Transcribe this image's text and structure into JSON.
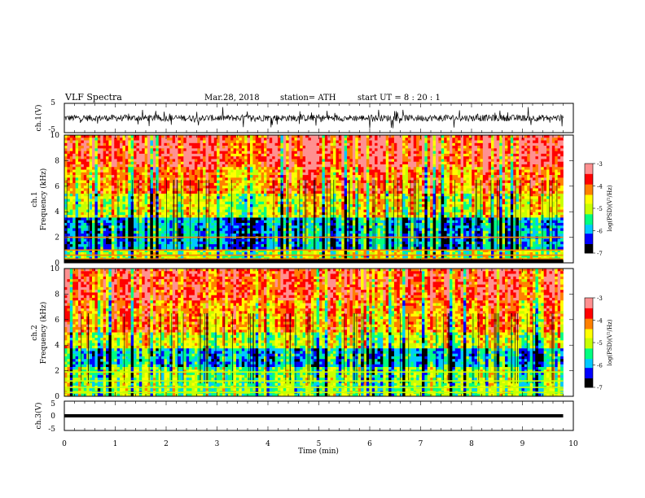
{
  "header": {
    "title": "VLF  Spectra",
    "date": "Mar.28, 2018",
    "station": "station= ATH",
    "start": "start  UT  =    8  : 20 : 1"
  },
  "chart_data": [
    {
      "type": "line",
      "panel": "ch1-waveform",
      "ylabel": "ch.1(V)",
      "ylim": [
        -5,
        5
      ],
      "yticks": [
        "5",
        "-5"
      ],
      "xlim": [
        0,
        10
      ]
    },
    {
      "type": "heatmap",
      "panel": "ch1-spectrogram",
      "ylabel_line1": "ch.1",
      "ylabel_line2": "Frequency  (kHz)",
      "ylim": [
        0,
        10
      ],
      "yticks": [
        "0",
        "2",
        "4",
        "6",
        "8",
        "10"
      ],
      "xlim": [
        0,
        10
      ],
      "data_end_min": 9.8,
      "colorbar": {
        "label": "log(PSD)(V²/Hz)",
        "range": [
          -7,
          -3
        ],
        "ticks": [
          "-3",
          "-4",
          "-5",
          "-6",
          "-7"
        ]
      }
    },
    {
      "type": "heatmap",
      "panel": "ch2-spectrogram",
      "ylabel_line1": "ch.2",
      "ylabel_line2": "Frequency  (kHz)",
      "ylim": [
        0,
        10
      ],
      "yticks": [
        "0",
        "2",
        "4",
        "6",
        "8",
        "10"
      ],
      "xlim": [
        0,
        10
      ],
      "data_end_min": 9.8,
      "colorbar": {
        "label": "log(PSD)(V²/Hz)",
        "range": [
          -7,
          -3
        ],
        "ticks": [
          "-3",
          "-4",
          "-5",
          "-6",
          "-7"
        ]
      }
    },
    {
      "type": "line",
      "panel": "ch3-waveform",
      "ylabel": "ch.3(V)",
      "ylim": [
        -5,
        5
      ],
      "yticks": [
        "5",
        "0",
        "-5"
      ],
      "xlim": [
        0,
        10
      ],
      "xticks": [
        "0",
        "1",
        "2",
        "3",
        "4",
        "5",
        "6",
        "7",
        "8",
        "9",
        "10"
      ],
      "xlabel": "Time  (min)"
    }
  ],
  "colors": {
    "colormap": [
      "#000000",
      "#0000ff",
      "#00c8ff",
      "#00ff80",
      "#c8ff00",
      "#ffff00",
      "#ff8000",
      "#ff0000",
      "#ff9090",
      "#ffffff"
    ]
  }
}
